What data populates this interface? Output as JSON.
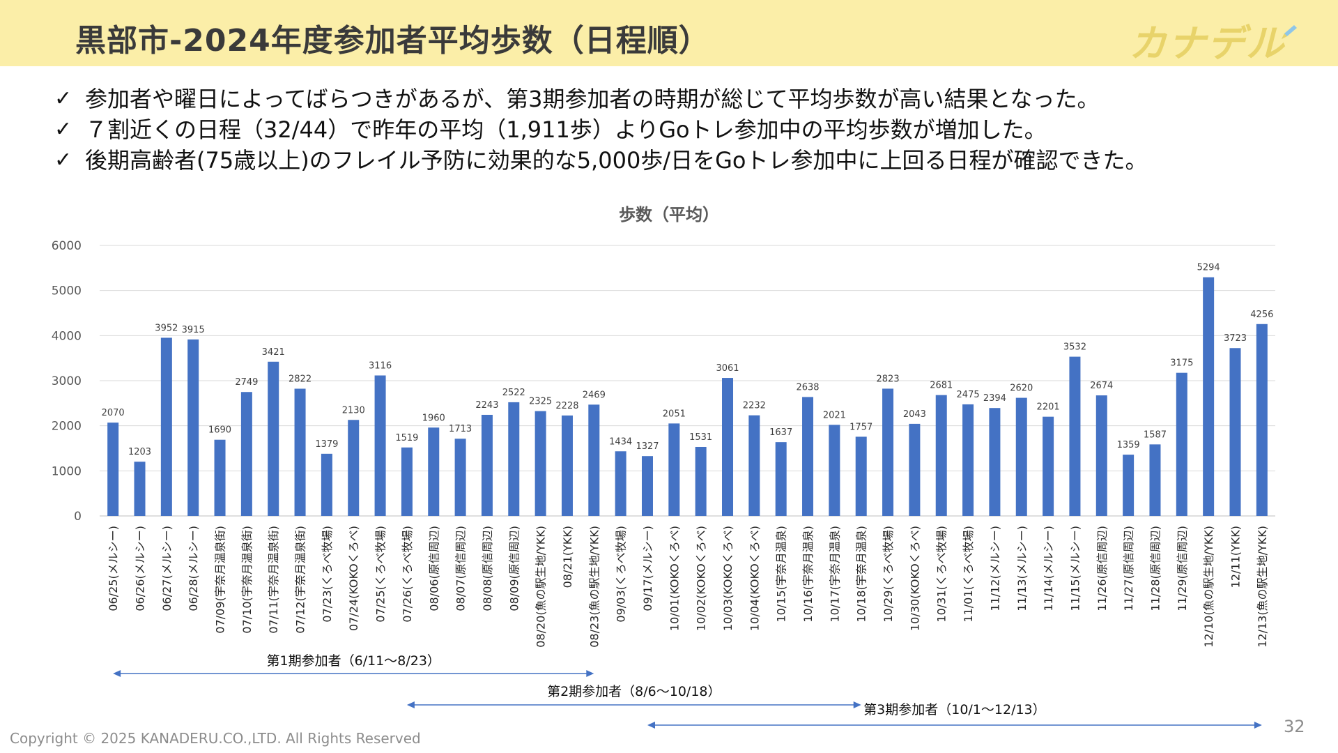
{
  "header": {
    "title": "黒部市-2024年度参加者平均歩数（日程順）",
    "logo_text": "カナデル",
    "background_color": "#fbeea8"
  },
  "bullets": [
    "参加者や曜日によってばらつきがあるが、第3期参加者の時期が総じて平均歩数が高い結果となった。",
    "７割近くの日程（32/44）で昨年の平均（1,911歩）よりGoトレ参加中の平均歩数が増加した。",
    "後期高齢者(75歳以上)のフレイル予防に効果的な5,000歩/日をGoトレ参加中に上回る日程が確認できた。"
  ],
  "bullet_icon": "check-icon",
  "chart_data": {
    "type": "bar",
    "title": "歩数（平均）",
    "xlabel": "",
    "ylabel": "",
    "ylim": [
      0,
      6000
    ],
    "yticks": [
      "0",
      "1000",
      "2000",
      "3000",
      "4000",
      "5000",
      "6000"
    ],
    "grid": true,
    "bar_color": "#4472c4",
    "categories": [
      "06/25(メルシー)",
      "06/26(メルシー)",
      "06/27(メルシー)",
      "06/28(メルシー)",
      "07/09(宇奈月温泉街)",
      "07/10(宇奈月温泉街)",
      "07/11(宇奈月温泉街)",
      "07/12(宇奈月温泉街)",
      "07/23(くろべ牧場)",
      "07/24(KOKOくろべ)",
      "07/25(くろべ牧場)",
      "07/26(くろべ牧場)",
      "08/06(原信周辺)",
      "08/07(原信周辺)",
      "08/08(原信周辺)",
      "08/09(原信周辺)",
      "08/20(魚の駅生地/YKK)",
      "08/21(YKK)",
      "08/23(魚の駅生地/YKK)",
      "09/03(くろべ牧場)",
      "09/17(メルシー)",
      "10/01(KOKOくろべ)",
      "10/02(KOKOくろべ)",
      "10/03(KOKOくろべ)",
      "10/04(KOKOくろべ)",
      "10/15(宇奈月温泉)",
      "10/16(宇奈月温泉)",
      "10/17(宇奈月温泉)",
      "10/18(宇奈月温泉)",
      "10/29(くろべ牧場)",
      "10/30(KOKOくろべ)",
      "10/31(くろべ牧場)",
      "11/01(くろべ牧場)",
      "11/12(メルシー)",
      "11/13(メルシー)",
      "11/14(メルシー)",
      "11/15(メルシー)",
      "11/26(原信周辺)",
      "11/27(原信周辺)",
      "11/28(原信周辺)",
      "11/29(原信周辺)",
      "12/10(魚の駅生地/YKK)",
      "12/11(YKK)",
      "12/13(魚の駅生地/YKK)"
    ],
    "values": [
      2070,
      1203,
      3952,
      3915,
      1690,
      2749,
      3421,
      2822,
      1379,
      2130,
      3116,
      1519,
      1960,
      1713,
      2243,
      2522,
      2325,
      2228,
      2469,
      1434,
      1327,
      2051,
      1531,
      3061,
      2232,
      1637,
      2638,
      2021,
      1757,
      2823,
      2043,
      2681,
      2475,
      2394,
      2620,
      2201,
      3532,
      2674,
      1359,
      1587,
      3175,
      5294,
      3723,
      4256
    ],
    "annotations": [
      {
        "label": "第1期参加者（6/11～8/23）",
        "from": "06/25(メルシー)",
        "to": "08/23(魚の駅生地/YKK)"
      },
      {
        "label": "第2期参加者（8/6～10/18）",
        "from": "07/26(くろべ牧場)",
        "to": "10/18(宇奈月温泉)"
      },
      {
        "label": "第3期参加者（10/1～12/13）",
        "from": "09/17(メルシー)",
        "to": "12/13(魚の駅生地/YKK)"
      }
    ],
    "annotation_color": "#4472c4"
  },
  "footer": {
    "copyright": "Copyright © 2025 KANADERU.CO.,LTD.   All Rights Reserved",
    "page_number": "32"
  }
}
